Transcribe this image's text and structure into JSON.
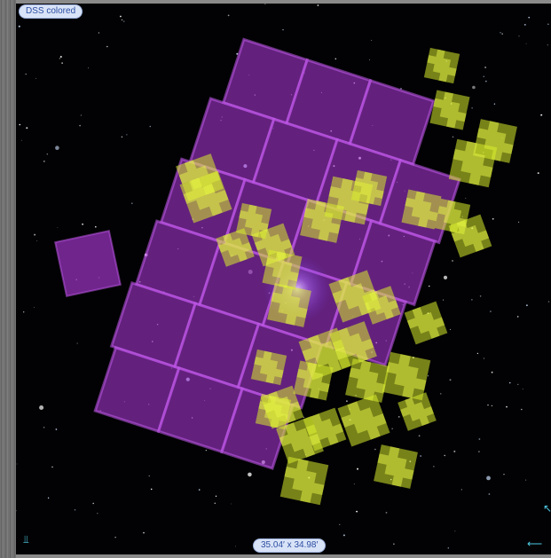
{
  "viewer": {
    "survey_label": "DSS colored",
    "fov_label": "35.04′ x 34.98′"
  },
  "icons": {
    "bottom_left": "location-icon",
    "bottom_right": "arrow-icon",
    "right_edge": "expand-icon"
  },
  "colors": {
    "sky_background": "#020204",
    "magenta_footprint": "#a035c8",
    "yellow_footprint": "#d8ec2c",
    "badge_background": "#d9e3f7",
    "badge_text": "#2c4ea3",
    "control_icon": "#4ecbe6"
  }
}
